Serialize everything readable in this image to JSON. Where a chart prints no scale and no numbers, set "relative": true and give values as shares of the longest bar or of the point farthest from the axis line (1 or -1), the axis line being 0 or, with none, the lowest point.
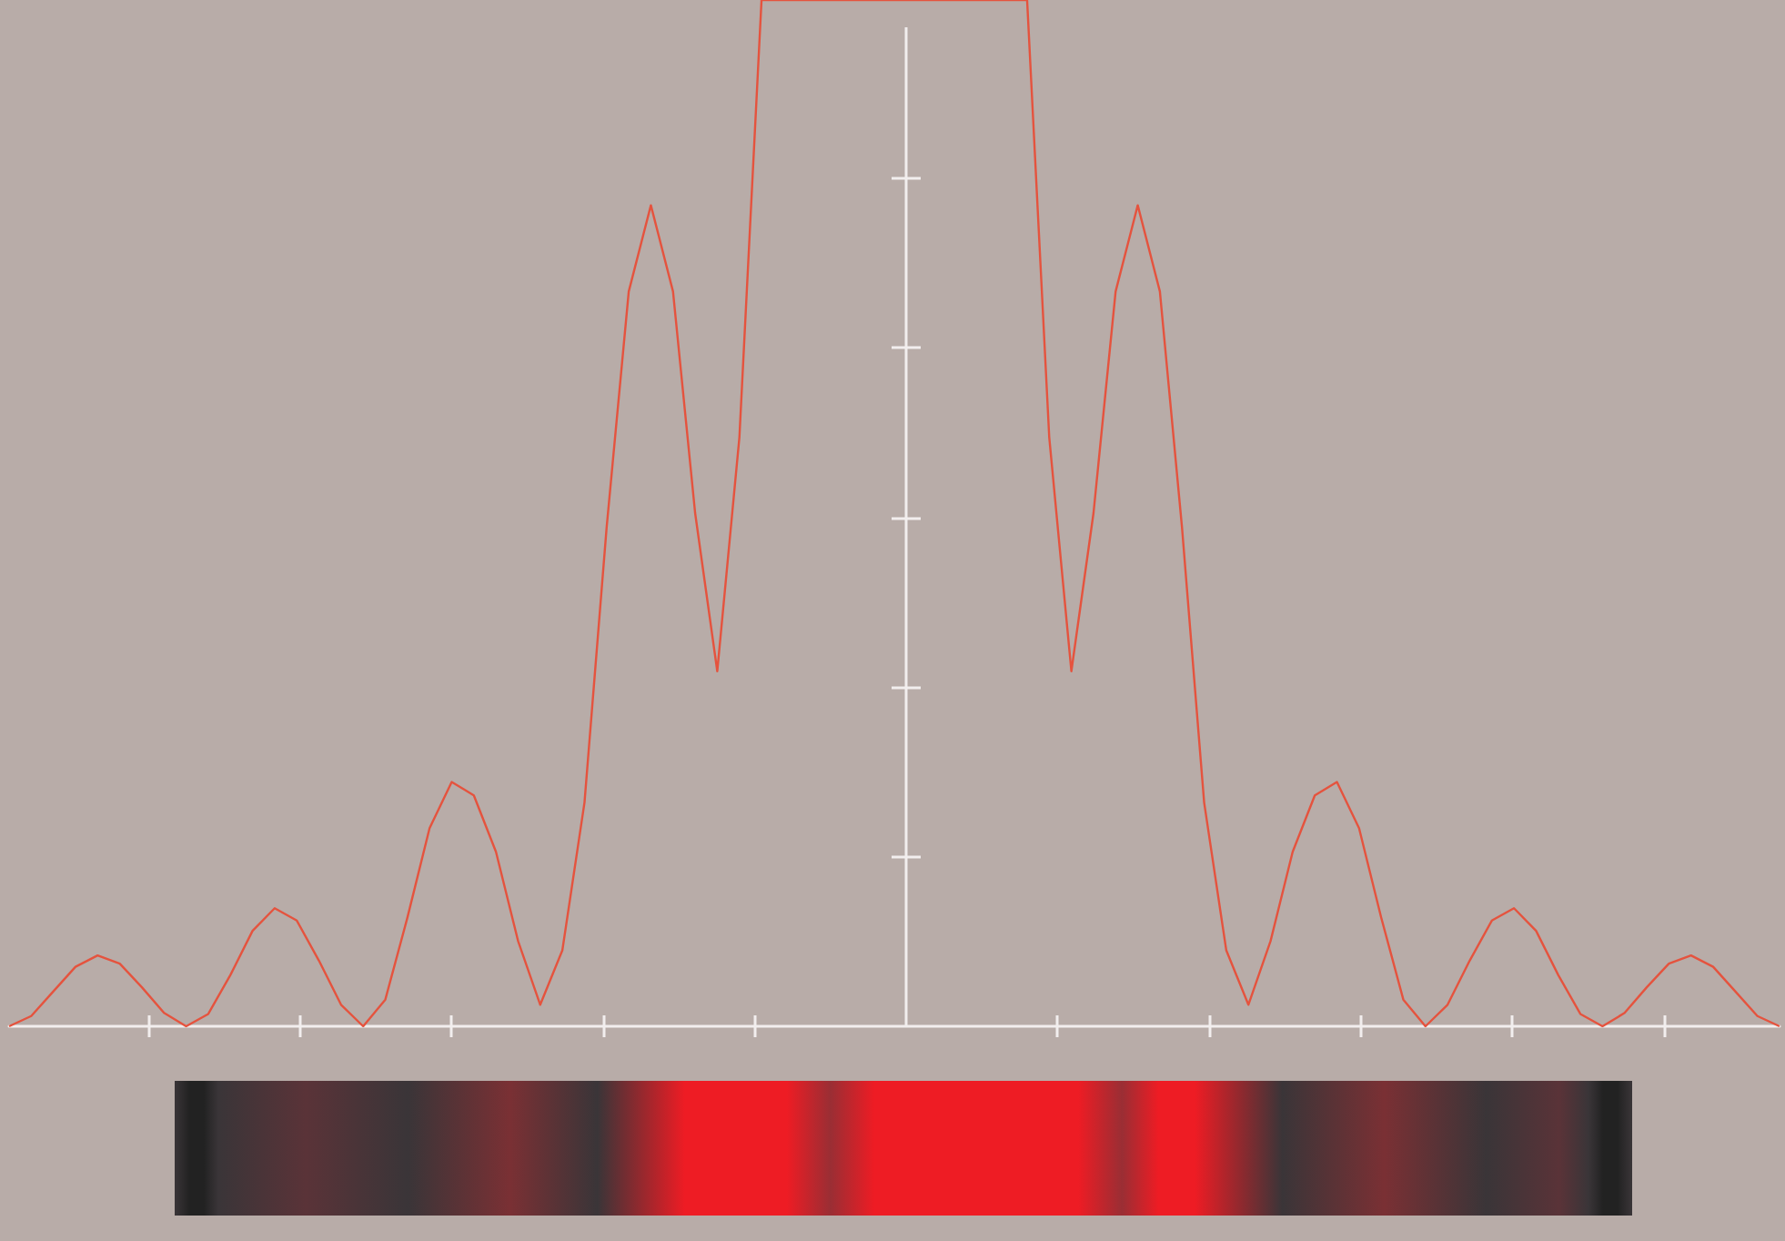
{
  "chart_data": {
    "type": "line",
    "relative": true,
    "color": "#e5533e",
    "grid": false,
    "marker": "none",
    "line_style": "solid",
    "categories": [
      null,
      null,
      null,
      null,
      null,
      null,
      null,
      null,
      null,
      null,
      null,
      null,
      null,
      null,
      null,
      null,
      null,
      null,
      null,
      null,
      null,
      null,
      null,
      null,
      null,
      null,
      null,
      null,
      null,
      null,
      null,
      null,
      null,
      null,
      null,
      null,
      null,
      null,
      null,
      null,
      null,
      null,
      null,
      null,
      null,
      null,
      null,
      null,
      null,
      null,
      null,
      null,
      null,
      null,
      null,
      null,
      null,
      null,
      null,
      null,
      null,
      null,
      null,
      null,
      null,
      null,
      null,
      null,
      null,
      null,
      null,
      null,
      null,
      null,
      null,
      null,
      null,
      null,
      null,
      null,
      null
    ],
    "values": [
      0,
      0.01,
      0.034,
      0.058,
      0.069,
      0.061,
      0.038,
      0.013,
      0,
      0.012,
      0.05,
      0.093,
      0.115,
      0.103,
      0.064,
      0.021,
      0,
      0.026,
      0.106,
      0.193,
      0.238,
      0.225,
      0.17,
      0.083,
      0.021,
      0.074,
      0.218,
      0.486,
      0.716,
      0.8,
      0.716,
      0.5,
      0.346,
      0.574,
      1,
      null,
      null,
      null,
      null,
      null,
      null,
      null,
      null,
      null,
      null,
      null,
      1,
      0.574,
      0.346,
      0.5,
      0.716,
      0.8,
      0.716,
      0.486,
      0.218,
      0.074,
      0.021,
      0.083,
      0.17,
      0.225,
      0.238,
      0.193,
      0.106,
      0.026,
      0,
      0.021,
      0.064,
      0.103,
      0.115,
      0.093,
      0.05,
      0.012,
      0,
      0.013,
      0.038,
      0.061,
      0.069,
      0.058,
      0.034,
      0.01,
      0
    ]
  }
}
